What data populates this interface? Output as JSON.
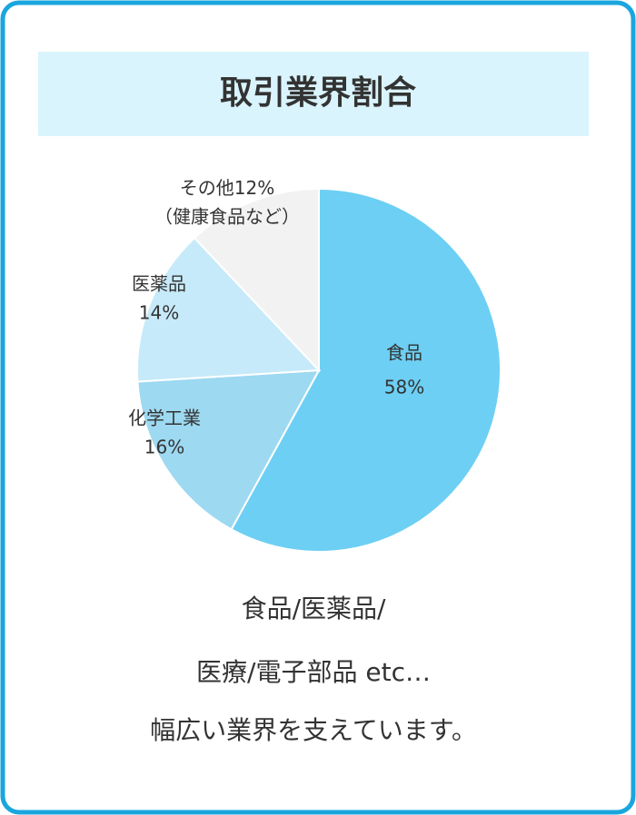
{
  "chart_data": {
    "type": "pie",
    "title": "取引業界割合",
    "categories": [
      "食品",
      "化学工業",
      "医薬品",
      "その他"
    ],
    "values": [
      58,
      16,
      14,
      12
    ],
    "value_labels": [
      "58%",
      "16%",
      "14%",
      "12%"
    ],
    "colors": [
      "#6dcff3",
      "#9dd9f1",
      "#c6eaf9",
      "#f2f2f2"
    ],
    "annotation": "（健康食品など）",
    "caption": [
      "食品/医薬品/",
      "医療/電子部品 etc…",
      "幅広い業界を支えています。"
    ]
  }
}
